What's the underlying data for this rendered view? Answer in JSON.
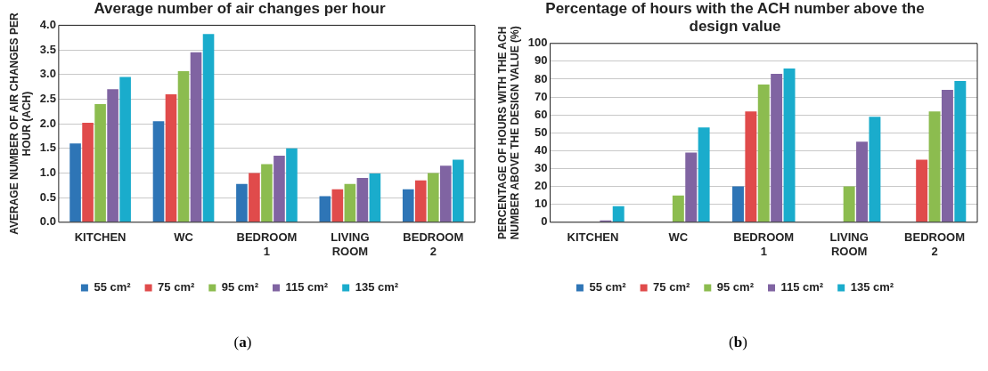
{
  "chart_data": [
    {
      "type": "bar",
      "title": "Average number of air changes per hour",
      "ylabel": "AVERAGE NUMBER OF AIR CHANGES PER HOUR (ACH)",
      "categories": [
        "KITCHEN",
        "WC",
        "BEDROOM 1",
        "LIVING ROOM",
        "BEDROOM 2"
      ],
      "series": [
        {
          "name": "55 cm²",
          "color": "#2e75b6",
          "values": [
            1.6,
            2.05,
            0.78,
            0.53,
            0.67
          ]
        },
        {
          "name": "75 cm²",
          "color": "#e04b4b",
          "values": [
            2.02,
            2.6,
            1.0,
            0.67,
            0.85
          ]
        },
        {
          "name": "95 cm²",
          "color": "#8cbc4f",
          "values": [
            2.4,
            3.07,
            1.18,
            0.78,
            1.0
          ]
        },
        {
          "name": "115 cm²",
          "color": "#8064a2",
          "values": [
            2.7,
            3.45,
            1.35,
            0.9,
            1.15
          ]
        },
        {
          "name": "135 cm²",
          "color": "#1aaccc",
          "values": [
            2.95,
            3.82,
            1.5,
            0.99,
            1.27
          ]
        }
      ],
      "ylim": [
        0,
        4
      ],
      "yticks": [
        {
          "value": 0,
          "label": "0.0"
        },
        {
          "value": 0.5,
          "label": "0.5"
        },
        {
          "value": 1,
          "label": "1.0"
        },
        {
          "value": 1.5,
          "label": "1.5"
        },
        {
          "value": 2,
          "label": "2.0"
        },
        {
          "value": 2.5,
          "label": "2.5"
        },
        {
          "value": 3,
          "label": "3.0"
        },
        {
          "value": 3.5,
          "label": "3.5"
        },
        {
          "value": 4,
          "label": "4.0"
        }
      ],
      "grid": "y",
      "legend": "bottom",
      "annotations": [
        "(a)"
      ]
    },
    {
      "type": "bar",
      "title": "Percentage of hours with the ACH number above the design value",
      "ylabel": "PERCENTAGE OF HOURS WITH THE ACH NUMBER ABOVE THE DESIGN VALUE (%)",
      "categories": [
        "KITCHEN",
        "WC",
        "BEDROOM 1",
        "LIVING ROOM",
        "BEDROOM 2"
      ],
      "series": [
        {
          "name": "55 cm²",
          "color": "#2e75b6",
          "values": [
            0,
            0,
            20,
            0,
            0
          ]
        },
        {
          "name": "75 cm²",
          "color": "#e04b4b",
          "values": [
            0,
            0,
            62,
            0,
            35
          ]
        },
        {
          "name": "95 cm²",
          "color": "#8cbc4f",
          "values": [
            0,
            15,
            77,
            20,
            62
          ]
        },
        {
          "name": "115 cm²",
          "color": "#8064a2",
          "values": [
            1,
            39,
            83,
            45,
            74
          ]
        },
        {
          "name": "135 cm²",
          "color": "#1aaccc",
          "values": [
            9,
            53,
            86,
            59,
            79
          ]
        }
      ],
      "ylim": [
        0,
        100
      ],
      "yticks": [
        0,
        10,
        20,
        30,
        40,
        50,
        60,
        70,
        80,
        90,
        100
      ],
      "grid": "y",
      "legend": "bottom",
      "annotations": [
        "(b)"
      ]
    }
  ]
}
